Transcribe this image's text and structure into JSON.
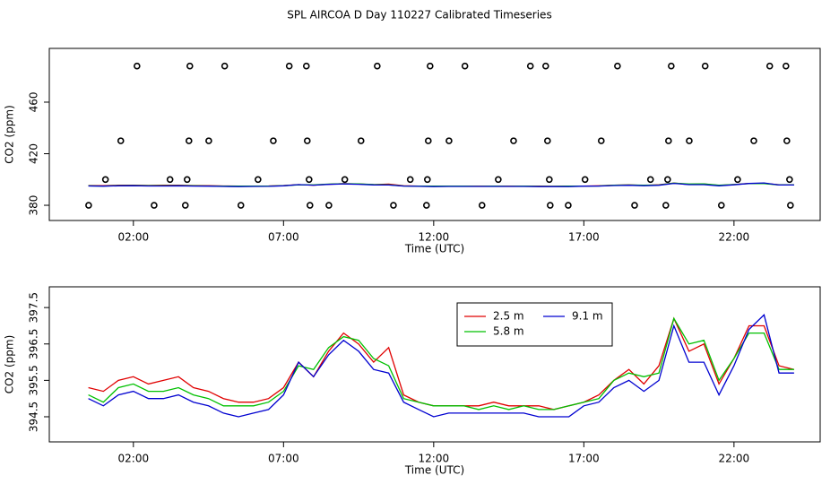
{
  "title": "SPL AIRCOA D  Day 110227  Calibrated Timeseries",
  "chart_data": [
    {
      "type": "scatter",
      "x_label": "Time (UTC)",
      "y_label": "CO2 (ppm)",
      "color": "#000000",
      "x": [
        2.12,
        3.88,
        5.04,
        7.19,
        7.76,
        10.12,
        11.88,
        13.04,
        15.22,
        15.73,
        18.12,
        19.91,
        21.04,
        23.19,
        23.73,
        1.58,
        3.85,
        4.51,
        6.66,
        7.79,
        9.58,
        11.82,
        12.51,
        14.66,
        15.79,
        17.58,
        19.82,
        20.51,
        22.66,
        23.76,
        1.07,
        3.22,
        3.79,
        6.15,
        7.85,
        9.04,
        11.22,
        11.79,
        14.15,
        15.85,
        17.04,
        19.22,
        19.79,
        22.12,
        23.85,
        0.51,
        2.69,
        3.73,
        5.58,
        7.88,
        8.51,
        10.66,
        11.76,
        13.61,
        15.88,
        16.48,
        18.69,
        19.73,
        21.58,
        23.88
      ],
      "values": [
        488,
        488,
        488,
        488,
        488,
        488,
        488,
        488,
        488,
        488,
        488,
        488,
        488,
        488,
        488,
        430,
        430,
        430,
        430,
        430,
        430,
        430,
        430,
        430,
        430,
        430,
        430,
        430,
        430,
        430,
        400,
        400,
        400,
        400,
        400,
        400,
        400,
        400,
        400,
        400,
        400,
        400,
        400,
        400,
        400,
        380,
        380,
        380,
        380,
        380,
        380,
        380,
        380,
        380,
        380,
        380,
        380,
        380,
        380,
        380
      ],
      "xlim": [
        -0.8,
        24.87
      ],
      "ylim": [
        368.2,
        501.7
      ],
      "xticks": [
        {
          "value": 2,
          "label": "02:00"
        },
        {
          "value": 7,
          "label": "07:00"
        },
        {
          "value": 12,
          "label": "12:00"
        },
        {
          "value": 17,
          "label": "17:00"
        },
        {
          "value": 22,
          "label": "22:00"
        }
      ],
      "yticks": [
        380,
        420,
        460
      ]
    },
    {
      "type": "line",
      "x_label": "Time (UTC)",
      "y_label": "CO2 (ppm)",
      "legend": "top-center",
      "x": [
        0.5,
        1,
        1.5,
        2,
        2.5,
        3,
        3.5,
        4,
        4.5,
        5,
        5.5,
        6,
        6.5,
        7,
        7.5,
        8,
        8.5,
        9,
        9.5,
        10,
        10.5,
        11,
        11.5,
        12,
        12.5,
        13,
        13.5,
        14,
        14.5,
        15,
        15.5,
        16,
        16.5,
        17,
        17.5,
        18,
        18.5,
        19,
        19.5,
        20,
        20.5,
        21,
        21.5,
        22,
        22.5,
        23,
        23.5,
        24
      ],
      "series": [
        {
          "name": "2.5 m",
          "color": "#e00000",
          "values": [
            395.3,
            395.2,
            395.5,
            395.6,
            395.4,
            395.5,
            395.6,
            395.3,
            395.2,
            395.0,
            394.9,
            394.9,
            395.0,
            395.3,
            396.0,
            395.6,
            396.3,
            396.8,
            396.5,
            396.0,
            396.4,
            395.1,
            394.9,
            394.8,
            394.8,
            394.8,
            394.8,
            394.9,
            394.8,
            394.8,
            394.8,
            394.7,
            394.8,
            394.9,
            395.1,
            395.5,
            395.8,
            395.4,
            395.9,
            397.2,
            396.3,
            396.5,
            395.4,
            396.1,
            397.0,
            397.0,
            395.9,
            395.8
          ]
        },
        {
          "name": "5.8 m",
          "color": "#00c000",
          "values": [
            395.1,
            394.9,
            395.3,
            395.4,
            395.2,
            395.2,
            395.3,
            395.1,
            395.0,
            394.8,
            394.8,
            394.8,
            394.9,
            395.2,
            395.9,
            395.8,
            396.4,
            396.7,
            396.6,
            396.1,
            395.9,
            395.0,
            394.9,
            394.8,
            394.8,
            394.8,
            394.7,
            394.8,
            394.7,
            394.8,
            394.7,
            394.7,
            394.8,
            394.9,
            395.0,
            395.5,
            395.7,
            395.6,
            395.7,
            397.2,
            396.5,
            396.6,
            395.5,
            396.1,
            396.8,
            396.8,
            395.8,
            395.8
          ]
        },
        {
          "name": "9.1 m",
          "color": "#0000d0",
          "values": [
            395.0,
            394.8,
            395.1,
            395.2,
            395.0,
            395.0,
            395.1,
            394.9,
            394.8,
            394.6,
            394.5,
            394.6,
            394.7,
            395.1,
            396.0,
            395.6,
            396.2,
            396.6,
            396.3,
            395.8,
            395.7,
            394.9,
            394.7,
            394.5,
            394.6,
            394.6,
            394.6,
            394.6,
            394.6,
            394.6,
            394.5,
            394.5,
            394.5,
            394.8,
            394.9,
            395.3,
            395.5,
            395.2,
            395.5,
            397.0,
            396.0,
            396.0,
            395.1,
            395.9,
            396.9,
            397.3,
            395.7,
            395.7
          ]
        }
      ],
      "xlim": [
        -0.8,
        24.87
      ],
      "ylim": [
        393.81,
        398.07
      ],
      "xticks": [
        {
          "value": 2,
          "label": "02:00"
        },
        {
          "value": 7,
          "label": "07:00"
        },
        {
          "value": 12,
          "label": "12:00"
        },
        {
          "value": 17,
          "label": "17:00"
        },
        {
          "value": 22,
          "label": "22:00"
        }
      ],
      "yticks": [
        394.5,
        395.5,
        396.5,
        397.5
      ]
    }
  ]
}
